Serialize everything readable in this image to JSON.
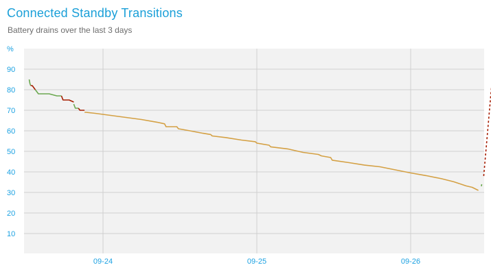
{
  "header": {
    "title": "Connected Standby Transitions",
    "subtitle": "Battery drains over the last 3 days"
  },
  "chart_data": {
    "type": "line",
    "title": "Connected Standby Transitions",
    "subtitle": "Battery drains over the last 3 days",
    "ylabel": "%",
    "xlabel": "",
    "ylim": [
      0,
      100
    ],
    "y_ticks": [
      10,
      20,
      30,
      40,
      50,
      60,
      70,
      80,
      90
    ],
    "x_unit": "days",
    "xlim": [
      0,
      3.0
    ],
    "x_ticks": [
      {
        "label": "09-24",
        "x": 0.5
      },
      {
        "label": "09-25",
        "x": 1.5
      },
      {
        "label": "09-26",
        "x": 2.5
      }
    ],
    "grid": true,
    "background_color": "#f2f2f2",
    "grid_color": "#d0d0d0",
    "axis_text_color": "#1ba1e2",
    "series": [
      {
        "color": "#6aa84f",
        "style": "solid",
        "x": [
          0.02,
          0.025,
          0.03
        ],
        "y": [
          85,
          83,
          82
        ]
      },
      {
        "color": "#a61c00",
        "style": "solid",
        "x": [
          0.03,
          0.04,
          0.05,
          0.06
        ],
        "y": [
          82,
          82,
          81,
          80
        ]
      },
      {
        "color": "#6aa84f",
        "style": "solid",
        "x": [
          0.06,
          0.07,
          0.08,
          0.09,
          0.15,
          0.2,
          0.23
        ],
        "y": [
          80,
          79,
          78,
          78,
          78,
          77,
          77
        ]
      },
      {
        "color": "#a61c00",
        "style": "solid",
        "x": [
          0.23,
          0.24,
          0.28,
          0.31
        ],
        "y": [
          77,
          75,
          75,
          74
        ]
      },
      {
        "color": "#6aa84f",
        "style": "solid",
        "x": [
          0.31,
          0.32,
          0.34
        ],
        "y": [
          73,
          71,
          71
        ]
      },
      {
        "color": "#a61c00",
        "style": "solid",
        "x": [
          0.34,
          0.35,
          0.38
        ],
        "y": [
          71,
          70,
          70
        ]
      },
      {
        "color": "#d4a043",
        "style": "solid",
        "x": [
          0.38,
          0.39,
          0.45,
          0.55,
          0.65,
          0.75,
          0.85,
          0.9,
          0.91,
          0.98,
          0.99,
          1.05,
          1.15,
          1.2,
          1.21,
          1.3,
          1.4,
          1.49,
          1.5,
          1.58,
          1.59,
          1.7,
          1.8,
          1.9,
          1.92,
          1.98,
          1.99,
          2.1,
          2.2,
          2.3,
          2.4,
          2.5,
          2.6,
          2.7,
          2.78,
          2.82
        ],
        "y": [
          69,
          69,
          68.5,
          67.5,
          66.5,
          65.5,
          64.2,
          63.4,
          62,
          62,
          61,
          60.2,
          58.8,
          58.2,
          57.5,
          56.7,
          55.5,
          54.7,
          54,
          53,
          52.2,
          51.2,
          49.5,
          48.5,
          47.8,
          47,
          45.7,
          44.5,
          43.3,
          42.5,
          41,
          39.5,
          38.2,
          36.7,
          35.2,
          34.2
        ]
      },
      {
        "color": "#d4a043",
        "style": "solid",
        "x": [
          2.82,
          2.86,
          2.9,
          2.94
        ],
        "y": [
          34.2,
          33.2,
          32.5,
          31
        ]
      },
      {
        "color": "#6aa84f",
        "style": "solid",
        "x": [
          2.96,
          2.962
        ],
        "y": [
          33,
          34
        ]
      },
      {
        "color": "#a61c00",
        "style": "dashed",
        "x": [
          2.975,
          3.045
        ],
        "y": [
          38,
          98
        ]
      }
    ]
  }
}
